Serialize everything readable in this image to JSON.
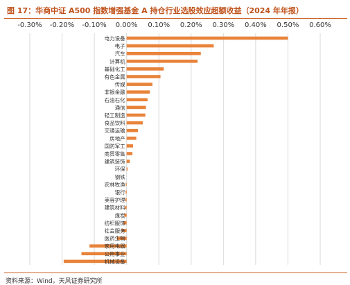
{
  "title": "图 17：华商中证 A500 指数增强基金 A 持仓行业选股效应超额收益（2024 年年报）",
  "source": "资料来源：Wind，天风证券研究所",
  "colors": {
    "bar": "#E8833A",
    "title": "#C0521B",
    "grid": "#D9D9D9",
    "text": "#333333"
  },
  "chart_data": {
    "type": "bar",
    "orientation": "horizontal",
    "title": "",
    "xlabel": "",
    "ylabel": "",
    "xlim": [
      -0.3,
      0.6
    ],
    "x_ticks": [
      -0.3,
      -0.2,
      -0.1,
      0.0,
      0.1,
      0.2,
      0.3,
      0.4,
      0.5,
      0.6
    ],
    "x_tick_labels": [
      "-0.30%",
      "-0.20%",
      "-0.10%",
      "0.00%",
      "0.10%",
      "0.20%",
      "0.30%",
      "0.40%",
      "0.50%",
      "0.60%"
    ],
    "x_axis_position": "top",
    "grid": "vertical",
    "legend": "none",
    "categories": [
      "电力设备",
      "电子",
      "汽车",
      "计算机",
      "基础化工",
      "有色金属",
      "传媒",
      "非银金融",
      "石油石化",
      "通信",
      "轻工制造",
      "食品饮料",
      "交通运输",
      "房地产",
      "国防军工",
      "商贸零售",
      "建筑装饰",
      "环保",
      "钢铁",
      "农林牧渔",
      "银行",
      "美容护理",
      "建筑材料",
      "煤炭",
      "纺织服饰",
      "社会服务",
      "医药生物",
      "家用电器",
      "公用事业",
      "机械设备"
    ],
    "values": [
      0.5,
      0.27,
      0.23,
      0.22,
      0.115,
      0.105,
      0.08,
      0.072,
      0.065,
      0.06,
      0.058,
      0.05,
      0.035,
      0.03,
      0.02,
      0.018,
      0.01,
      0.003,
      0.0,
      -0.002,
      -0.003,
      -0.004,
      -0.005,
      -0.007,
      -0.01,
      -0.015,
      -0.03,
      -0.115,
      -0.14,
      -0.195
    ]
  }
}
